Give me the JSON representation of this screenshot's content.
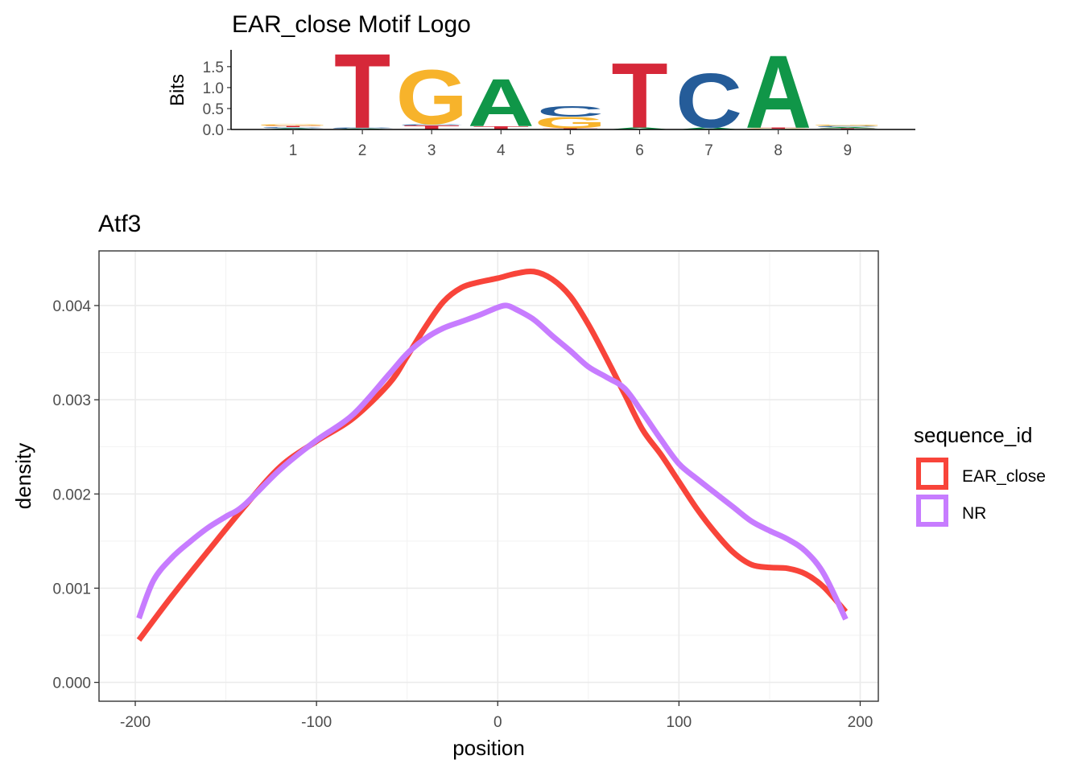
{
  "chart_data": [
    {
      "type": "sequence-logo",
      "title": "EAR_close Motif Logo",
      "ylabel": "Bits",
      "ylim": [
        0,
        1.9
      ],
      "yticks": [
        "0.0",
        "0.5",
        "1.0",
        "1.5"
      ],
      "ytick_values": [
        0,
        0.5,
        1.0,
        1.5
      ],
      "positions": [
        "1",
        "2",
        "3",
        "4",
        "5",
        "6",
        "7",
        "8",
        "9"
      ],
      "colors": {
        "A": "#109648",
        "C": "#255C99",
        "G": "#F7B32B",
        "T": "#D62839"
      },
      "columns": [
        {
          "position": 1,
          "letters": [
            {
              "base": "A",
              "bits": 0.03
            },
            {
              "base": "C",
              "bits": 0.03
            },
            {
              "base": "T",
              "bits": 0.03
            },
            {
              "base": "G",
              "bits": 0.04
            }
          ]
        },
        {
          "position": 2,
          "letters": [
            {
              "base": "A",
              "bits": 0.02
            },
            {
              "base": "C",
              "bits": 0.02
            },
            {
              "base": "T",
              "bits": 1.82
            }
          ]
        },
        {
          "position": 3,
          "letters": [
            {
              "base": "T",
              "bits": 0.1
            },
            {
              "base": "C",
              "bits": 0.03
            },
            {
              "base": "G",
              "bits": 1.32
            }
          ]
        },
        {
          "position": 4,
          "letters": [
            {
              "base": "T",
              "bits": 0.08
            },
            {
              "base": "A",
              "bits": 1.16
            }
          ]
        },
        {
          "position": 5,
          "letters": [
            {
              "base": "T",
              "bits": 0.03
            },
            {
              "base": "G",
              "bits": 0.28
            },
            {
              "base": "C",
              "bits": 0.26
            }
          ]
        },
        {
          "position": 6,
          "letters": [
            {
              "base": "A",
              "bits": 0.05
            },
            {
              "base": "T",
              "bits": 1.58
            }
          ]
        },
        {
          "position": 7,
          "letters": [
            {
              "base": "A",
              "bits": 0.05
            },
            {
              "base": "C",
              "bits": 1.32
            }
          ]
        },
        {
          "position": 8,
          "letters": [
            {
              "base": "G",
              "bits": 0.02
            },
            {
              "base": "T",
              "bits": 0.02
            },
            {
              "base": "A",
              "bits": 1.78
            }
          ]
        },
        {
          "position": 9,
          "letters": [
            {
              "base": "T",
              "bits": 0.03
            },
            {
              "base": "A",
              "bits": 0.03
            },
            {
              "base": "C",
              "bits": 0.03
            },
            {
              "base": "G",
              "bits": 0.03
            }
          ]
        }
      ]
    },
    {
      "type": "line",
      "title": "Atf3",
      "xlabel": "position",
      "ylabel": "density",
      "xlim": [
        -220,
        210
      ],
      "ylim": [
        -0.0002,
        0.00458
      ],
      "xticks": [
        -200,
        -100,
        0,
        100,
        200
      ],
      "xtick_labels": [
        "-200",
        "-100",
        "0",
        "100",
        "200"
      ],
      "yticks": [
        0,
        0.001,
        0.002,
        0.003,
        0.004
      ],
      "ytick_labels": [
        "0.000",
        "0.001",
        "0.002",
        "0.003",
        "0.004"
      ],
      "grid": true,
      "legend_title": "sequence_id",
      "legend_position": "right",
      "series": [
        {
          "name": "EAR_close",
          "color": "#F8443A",
          "x": [
            -198,
            -180,
            -160,
            -140,
            -120,
            -100,
            -80,
            -60,
            -50,
            -40,
            -30,
            -20,
            -10,
            0,
            10,
            20,
            30,
            40,
            50,
            60,
            70,
            80,
            90,
            100,
            110,
            120,
            130,
            140,
            150,
            160,
            170,
            180,
            192
          ],
          "y": [
            0.00045,
            0.00091,
            0.00139,
            0.00186,
            0.00229,
            0.00256,
            0.0028,
            0.00317,
            0.00346,
            0.00377,
            0.00404,
            0.00419,
            0.00425,
            0.00429,
            0.00434,
            0.00436,
            0.00428,
            0.0041,
            0.0038,
            0.00344,
            0.00306,
            0.00268,
            0.00242,
            0.00213,
            0.00184,
            0.00159,
            0.00138,
            0.00125,
            0.00122,
            0.00121,
            0.00115,
            0.00101,
            0.00075
          ]
        },
        {
          "name": "NR",
          "color": "#C77CFF",
          "x": [
            -198,
            -190,
            -180,
            -170,
            -160,
            -150,
            -140,
            -120,
            -100,
            -80,
            -60,
            -50,
            -40,
            -30,
            -20,
            -10,
            0,
            5,
            10,
            20,
            30,
            40,
            50,
            60,
            70,
            80,
            90,
            100,
            110,
            120,
            130,
            140,
            150,
            160,
            170,
            180,
            192
          ],
          "y": [
            0.00068,
            0.00108,
            0.00132,
            0.00149,
            0.00164,
            0.00176,
            0.00188,
            0.00226,
            0.00257,
            0.00284,
            0.00327,
            0.00349,
            0.00365,
            0.00376,
            0.00383,
            0.0039,
            0.00398,
            0.004,
            0.00396,
            0.00385,
            0.00368,
            0.00352,
            0.00335,
            0.00324,
            0.00312,
            0.00286,
            0.00258,
            0.00232,
            0.00216,
            0.00201,
            0.00186,
            0.00171,
            0.00161,
            0.00152,
            0.00139,
            0.00115,
            0.00067
          ]
        }
      ]
    }
  ]
}
